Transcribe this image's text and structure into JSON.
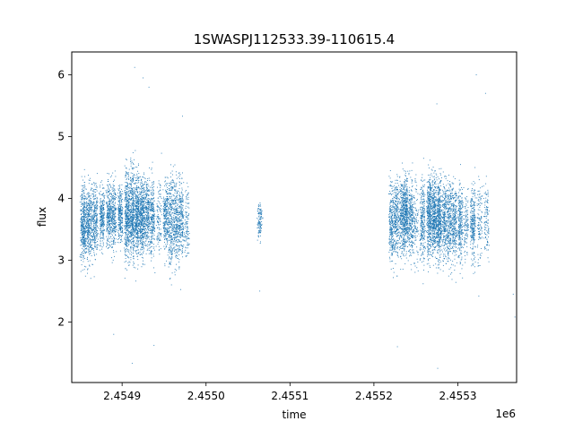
{
  "chart_data": {
    "type": "scatter",
    "title": "1SWASPJ112533.39-110615.4",
    "xlabel": "time",
    "ylabel": "flux",
    "x_offset_label": "1e6",
    "xlim": [
      2.45484,
      2.45537
    ],
    "ylim": [
      1.02,
      6.37
    ],
    "x_ticks": [
      2.4549,
      2.455,
      2.4551,
      2.4552,
      2.4553
    ],
    "x_tick_labels": [
      "2.4549",
      "2.4550",
      "2.4551",
      "2.4552",
      "2.4553"
    ],
    "y_ticks": [
      2,
      3,
      4,
      5,
      6
    ],
    "y_tick_labels": [
      "2",
      "3",
      "4",
      "5",
      "6"
    ],
    "grid": false,
    "marker_color": "#1f77b4",
    "series": [
      {
        "observing_nights": [
          {
            "x": 2.454853,
            "y_center": 3.55,
            "y_spread": 0.85,
            "density": "medium"
          },
          {
            "x": 2.454857,
            "y_center": 3.6,
            "y_spread": 0.8,
            "density": "medium"
          },
          {
            "x": 2.454862,
            "y_center": 3.6,
            "y_spread": 0.75,
            "density": "medium"
          },
          {
            "x": 2.454868,
            "y_center": 3.65,
            "y_spread": 0.7,
            "density": "medium"
          },
          {
            "x": 2.454876,
            "y_center": 3.7,
            "y_spread": 0.6,
            "density": "medium"
          },
          {
            "x": 2.454884,
            "y_center": 3.75,
            "y_spread": 0.6,
            "density": "medium"
          },
          {
            "x": 2.45489,
            "y_center": 3.7,
            "y_spread": 0.7,
            "density": "medium"
          },
          {
            "x": 2.454898,
            "y_center": 3.75,
            "y_spread": 0.6,
            "density": "medium"
          },
          {
            "x": 2.454906,
            "y_center": 3.7,
            "y_spread": 0.9,
            "density": "high"
          },
          {
            "x": 2.454912,
            "y_center": 3.75,
            "y_spread": 0.9,
            "density": "high"
          },
          {
            "x": 2.454918,
            "y_center": 3.75,
            "y_spread": 0.85,
            "density": "high"
          },
          {
            "x": 2.454924,
            "y_center": 3.7,
            "y_spread": 0.8,
            "density": "high"
          },
          {
            "x": 2.45493,
            "y_center": 3.75,
            "y_spread": 0.75,
            "density": "medium"
          },
          {
            "x": 2.454936,
            "y_center": 3.7,
            "y_spread": 0.8,
            "density": "medium"
          },
          {
            "x": 2.454944,
            "y_center": 3.7,
            "y_spread": 0.8,
            "density": "low"
          },
          {
            "x": 2.454952,
            "y_center": 3.7,
            "y_spread": 0.75,
            "density": "medium"
          },
          {
            "x": 2.454958,
            "y_center": 3.6,
            "y_spread": 0.9,
            "density": "medium"
          },
          {
            "x": 2.454964,
            "y_center": 3.65,
            "y_spread": 0.85,
            "density": "medium"
          },
          {
            "x": 2.45497,
            "y_center": 3.65,
            "y_spread": 0.85,
            "density": "medium"
          },
          {
            "x": 2.454977,
            "y_center": 3.6,
            "y_spread": 0.7,
            "density": "low"
          },
          {
            "x": 2.455064,
            "y_center": 3.6,
            "y_spread": 0.35,
            "density": "low"
          },
          {
            "x": 2.455221,
            "y_center": 3.6,
            "y_spread": 0.85,
            "density": "medium"
          },
          {
            "x": 2.455227,
            "y_center": 3.65,
            "y_spread": 0.8,
            "density": "medium"
          },
          {
            "x": 2.455233,
            "y_center": 3.7,
            "y_spread": 0.75,
            "density": "medium"
          },
          {
            "x": 2.455238,
            "y_center": 3.7,
            "y_spread": 0.75,
            "density": "high"
          },
          {
            "x": 2.455244,
            "y_center": 3.7,
            "y_spread": 0.8,
            "density": "medium"
          },
          {
            "x": 2.45525,
            "y_center": 3.65,
            "y_spread": 0.85,
            "density": "low"
          },
          {
            "x": 2.455258,
            "y_center": 3.65,
            "y_spread": 0.85,
            "density": "medium"
          },
          {
            "x": 2.455266,
            "y_center": 3.7,
            "y_spread": 0.8,
            "density": "high"
          },
          {
            "x": 2.455272,
            "y_center": 3.7,
            "y_spread": 0.8,
            "density": "high"
          },
          {
            "x": 2.455278,
            "y_center": 3.65,
            "y_spread": 0.8,
            "density": "high"
          },
          {
            "x": 2.455284,
            "y_center": 3.65,
            "y_spread": 0.8,
            "density": "medium"
          },
          {
            "x": 2.45529,
            "y_center": 3.6,
            "y_spread": 0.85,
            "density": "medium"
          },
          {
            "x": 2.455296,
            "y_center": 3.6,
            "y_spread": 0.8,
            "density": "medium"
          },
          {
            "x": 2.455303,
            "y_center": 3.6,
            "y_spread": 0.8,
            "density": "medium"
          },
          {
            "x": 2.45531,
            "y_center": 3.6,
            "y_spread": 0.75,
            "density": "low"
          },
          {
            "x": 2.455318,
            "y_center": 3.6,
            "y_spread": 0.75,
            "density": "medium"
          },
          {
            "x": 2.455326,
            "y_center": 3.6,
            "y_spread": 0.75,
            "density": "low"
          },
          {
            "x": 2.455334,
            "y_center": 3.65,
            "y_spread": 0.7,
            "density": "low"
          }
        ],
        "outliers": [
          {
            "x": 2.454915,
            "y": 6.12
          },
          {
            "x": 2.454925,
            "y": 5.95
          },
          {
            "x": 2.454932,
            "y": 5.8
          },
          {
            "x": 2.454972,
            "y": 5.33
          },
          {
            "x": 2.454912,
            "y": 1.33
          },
          {
            "x": 2.454938,
            "y": 1.62
          },
          {
            "x": 2.455276,
            "y": 1.25
          },
          {
            "x": 2.455275,
            "y": 5.53
          },
          {
            "x": 2.455322,
            "y": 6.0
          },
          {
            "x": 2.455333,
            "y": 5.7
          },
          {
            "x": 2.455325,
            "y": 2.42
          },
          {
            "x": 2.455366,
            "y": 2.45
          },
          {
            "x": 2.455368,
            "y": 2.08
          },
          {
            "x": 2.455228,
            "y": 1.6
          },
          {
            "x": 2.45489,
            "y": 1.8
          },
          {
            "x": 2.455064,
            "y": 2.5
          }
        ]
      }
    ]
  }
}
